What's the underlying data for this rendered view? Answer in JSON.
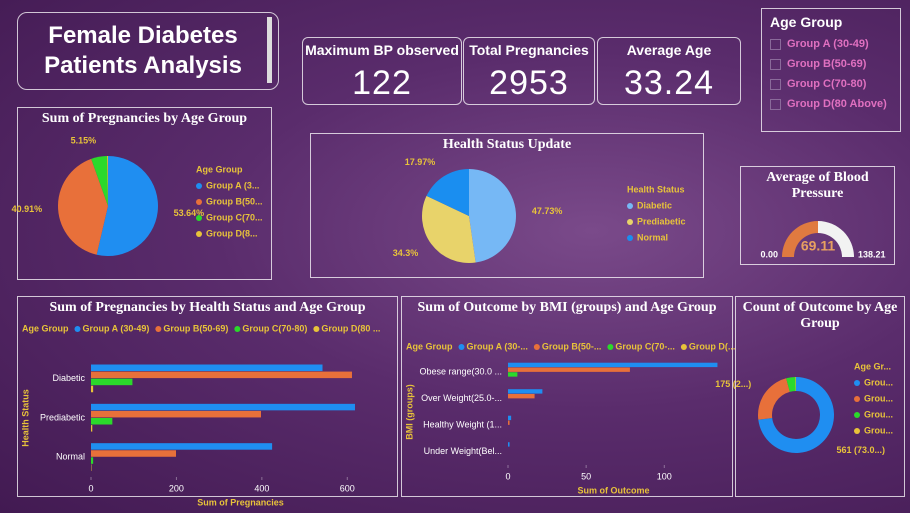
{
  "header": {
    "title": "Female Diabetes Patients Analysis"
  },
  "kpis": [
    {
      "label": "Maximum BP observed",
      "value": 122
    },
    {
      "label": "Total Pregnancies",
      "value": 2953
    },
    {
      "label": "Average Age",
      "value": 33.24
    }
  ],
  "slicer": {
    "title": "Age Group",
    "items": [
      "Group A (30-49)",
      "Group B(50-69)",
      "Group C(70-80)",
      "Group D(80 Above)"
    ]
  },
  "chart_data": [
    {
      "type": "pie",
      "title": "Sum of Pregnancies by Age Group",
      "legend_title": "Age Group",
      "categories": [
        "Group A (3...",
        "Group B(50...",
        "Group C(70...",
        "Group D(8..."
      ],
      "values": [
        53.64,
        40.91,
        5.15,
        0.3
      ],
      "value_labels": [
        "53.64%",
        "40.91%",
        "5.15%",
        null
      ],
      "colors": [
        "#1f8ef1",
        "#e8703a",
        "#2bd92b",
        "#e8c33a"
      ]
    },
    {
      "type": "pie",
      "title": "Health Status Update",
      "legend_title": "Health Status",
      "categories": [
        "Diabetic",
        "Prediabetic",
        "Normal"
      ],
      "values": [
        47.73,
        34.3,
        17.97
      ],
      "value_labels": [
        "47.73%",
        "34.3%",
        "17.97%"
      ],
      "colors": [
        "#76b8f5",
        "#e8d36a",
        "#1a8ef0"
      ]
    },
    {
      "type": "gauge",
      "title": "Average of Blood Pressure",
      "value": 69.11,
      "min": {
        "value": 0,
        "label": "0.00"
      },
      "max": 138.21,
      "color": "#e07a40"
    },
    {
      "type": "hbar",
      "title": "Sum of Pregnancies by Health Status and Age Group",
      "legend_title": "Age Group",
      "categories": [
        "Diabetic",
        "Prediabetic",
        "Normal"
      ],
      "series": [
        {
          "name": "Group A (30-49)",
          "color": "#1f8ef1",
          "values": [
            542,
            618,
            424
          ]
        },
        {
          "name": "Group B(50-69)",
          "color": "#e8703a",
          "values": [
            611,
            398,
            199
          ]
        },
        {
          "name": "Group C(70-80)",
          "color": "#2bd92b",
          "values": [
            97,
            50,
            5
          ]
        },
        {
          "name": "Group D(80 ...",
          "color": "#e8c33a",
          "values": [
            5,
            3,
            1
          ]
        }
      ],
      "xlim": [
        0,
        700
      ],
      "xticks": [
        0,
        200,
        400,
        600
      ],
      "x_label": "Sum of Pregnancies",
      "y_label": "Health Status",
      "grid": false
    },
    {
      "type": "hbar",
      "title": "Sum of Outcome by BMI (groups) and Age Group",
      "legend_title": "Age Group",
      "categories": [
        "Obese range(30.0 ...",
        "Over Weight(25.0-...",
        "Healthy Weight (1...",
        "Under Weight(Bel..."
      ],
      "series": [
        {
          "name": "Group A (30-...",
          "color": "#1f8ef1",
          "values": [
            134,
            22,
            2,
            1
          ]
        },
        {
          "name": "Group B(50-...",
          "color": "#e8703a",
          "values": [
            78,
            17,
            1,
            0
          ]
        },
        {
          "name": "Group C(70-...",
          "color": "#2bd92b",
          "values": [
            6,
            0,
            0,
            0
          ]
        },
        {
          "name": "Group D(...",
          "color": "#e8c33a",
          "values": [
            0,
            0,
            0,
            0
          ]
        }
      ],
      "xlim": [
        0,
        135
      ],
      "xticks": [
        0,
        50,
        100
      ],
      "x_label": "Sum of Outcome",
      "y_label": "BMI (groups)",
      "grid": false
    },
    {
      "type": "donut",
      "title": "Count of Outcome by Age Group",
      "legend_title": "Age Gr...",
      "categories": [
        "Grou...",
        "Grou...",
        "Grou...",
        "Grou..."
      ],
      "values": [
        561,
        175,
        30,
        2
      ],
      "value_labels": [
        "561 (73.0...)",
        "175 (2...)",
        null,
        null
      ],
      "colors": [
        "#1f8ef1",
        "#e8703a",
        "#2bd92b",
        "#e8c33a"
      ]
    }
  ]
}
